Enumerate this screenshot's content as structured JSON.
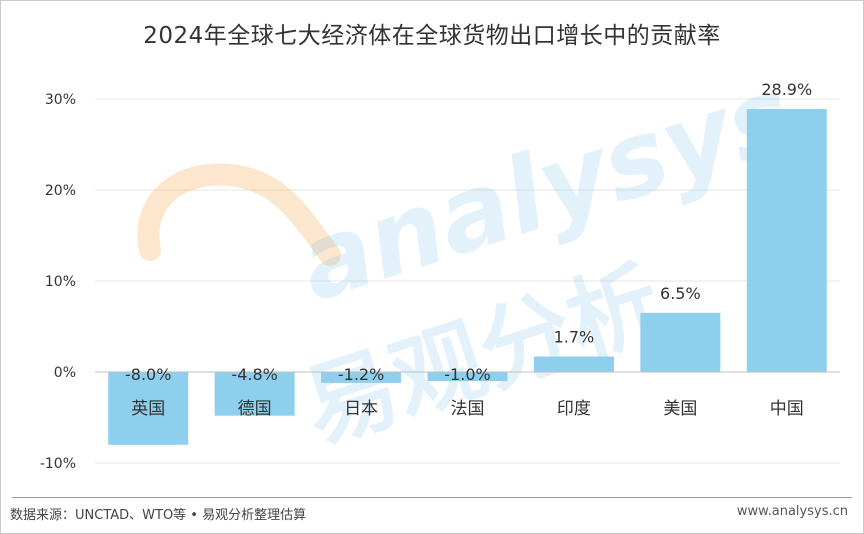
{
  "header": {
    "title": "2024年全球七大经济体在全球货物出口增长中的贡献率"
  },
  "footer": {
    "source": "数据来源：UNCTAD、WTO等 • 易观分析整理估算",
    "website": "www.analysys.cn"
  },
  "watermark": {
    "brand_en": "analysys",
    "brand_cn": "易观分析"
  },
  "colors": {
    "bar": "#8fcfee",
    "grid": "#e6e6e6",
    "axis_text": "#333333",
    "watermark_orange": "#f6a54c",
    "watermark_blue": "#5ab4e5"
  },
  "chart_data": {
    "type": "bar",
    "title": "2024年全球七大经济体在全球货物出口增长中的贡献率",
    "xlabel": "",
    "ylabel": "",
    "categories": [
      "英国",
      "德国",
      "日本",
      "法国",
      "印度",
      "美国",
      "中国"
    ],
    "values": [
      -8.0,
      -4.8,
      -1.2,
      -1.0,
      1.7,
      6.5,
      28.9
    ],
    "value_labels": [
      "-8.0%",
      "-4.8%",
      "-1.2%",
      "-1.0%",
      "1.7%",
      "6.5%",
      "28.9%"
    ],
    "ylim": [
      -10,
      30
    ],
    "yticks": [
      -10,
      0,
      10,
      20,
      30
    ],
    "ytick_labels": [
      "-10%",
      "0%",
      "10%",
      "20%",
      "30%"
    ],
    "grid": true,
    "legend": "none"
  }
}
